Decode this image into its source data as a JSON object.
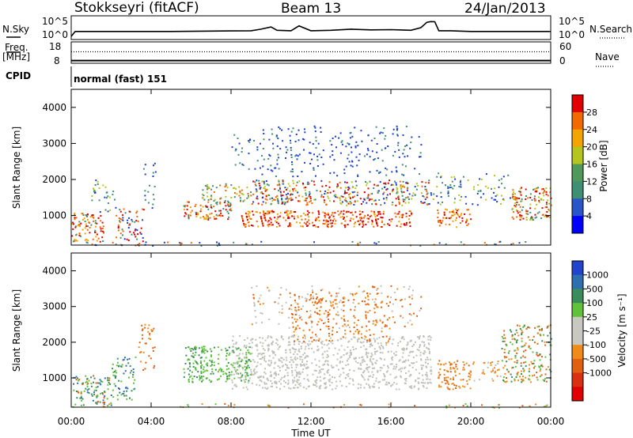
{
  "header": {
    "station": "Stokkseyri (fitACF)",
    "beam": "Beam 13",
    "date": "24/Jan/2013"
  },
  "top_panels": {
    "nsky_label": "N.Sky",
    "nsky_ticks": [
      "10^5",
      "10^0"
    ],
    "nsearch_label": "N.Search",
    "freq_label_1": "Freq.",
    "freq_label_2": "[MHz]",
    "freq_ticks": [
      "18",
      "8"
    ],
    "nave_ticks": [
      "60",
      "0"
    ],
    "nave_label": "Nave",
    "cpid_label": "CPID",
    "cpid_value": "normal (fast) 151"
  },
  "colors": {
    "power_scale": [
      "#0000ff",
      "#2855c8",
      "#3f8f74",
      "#4f9a5a",
      "#b6c41e",
      "#f2a400",
      "#f26a00",
      "#e00000"
    ],
    "velocity_scale": [
      "#2244cc",
      "#2f6fb0",
      "#3a8c5a",
      "#5ec23a",
      "#c8c8c0",
      "#c8c8c0",
      "#f08a1a",
      "#e06010",
      "#d83010",
      "#e00000"
    ],
    "gray_scatter": "#c0c0b8"
  },
  "chart_data": [
    {
      "type": "line",
      "panel": "N.Sky / N.Search",
      "ylabel": "N.Sky",
      "right_label": "N.Search",
      "yscale": "log",
      "ylim": [
        1,
        100000
      ],
      "description_values": {
        "x_hours": [
          0,
          0.2,
          0.5,
          1,
          2,
          3,
          4,
          5,
          6,
          7,
          8,
          9,
          9.5,
          10,
          10.3,
          11,
          11.4,
          12,
          13,
          14,
          15,
          16,
          17,
          17.5,
          17.8,
          18,
          18.2,
          18.4,
          19,
          20,
          22,
          24
        ],
        "nsky": [
          1,
          20,
          20,
          20,
          20,
          20,
          20,
          20,
          22,
          25,
          28,
          30,
          80,
          300,
          40,
          30,
          600,
          30,
          40,
          80,
          50,
          60,
          40,
          200,
          5000,
          8000,
          7000,
          30,
          30,
          20,
          20,
          20
        ]
      }
    },
    {
      "type": "line",
      "panel": "Freq / Nave",
      "ylabel": "Freq. [MHz]",
      "right_label": "Nave",
      "ylim_left": [
        8,
        18
      ],
      "ylim_right": [
        0,
        60
      ],
      "freq_mhz": 10.0,
      "nave": 34
    },
    {
      "type": "heatmap",
      "panel": "Power",
      "xlabel": "",
      "ylabel": "Slant Range [km]",
      "colorbar_label": "Power [dB]",
      "colorbar_ticks": [
        "28",
        "24",
        "20",
        "16",
        "12",
        "8",
        "4"
      ],
      "ylim": [
        180,
        4500
      ],
      "yticks": [
        "1000",
        "2000",
        "3000",
        "4000"
      ],
      "xlim_hours": [
        0,
        24
      ]
    },
    {
      "type": "heatmap",
      "panel": "Velocity",
      "xlabel": "Time UT",
      "ylabel": "Slant Range [km]",
      "colorbar_label": "Velocity [m s⁻¹]",
      "colorbar_ticks": [
        "1000",
        "500",
        "100",
        "25",
        "-25",
        "-100",
        "-500",
        "-1000"
      ],
      "ylim": [
        180,
        4500
      ],
      "yticks": [
        "1000",
        "2000",
        "3000",
        "4000"
      ],
      "xticks": [
        "00:00",
        "04:00",
        "08:00",
        "12:00",
        "16:00",
        "20:00",
        "00:00"
      ],
      "xlim_hours": [
        0,
        24
      ]
    }
  ]
}
